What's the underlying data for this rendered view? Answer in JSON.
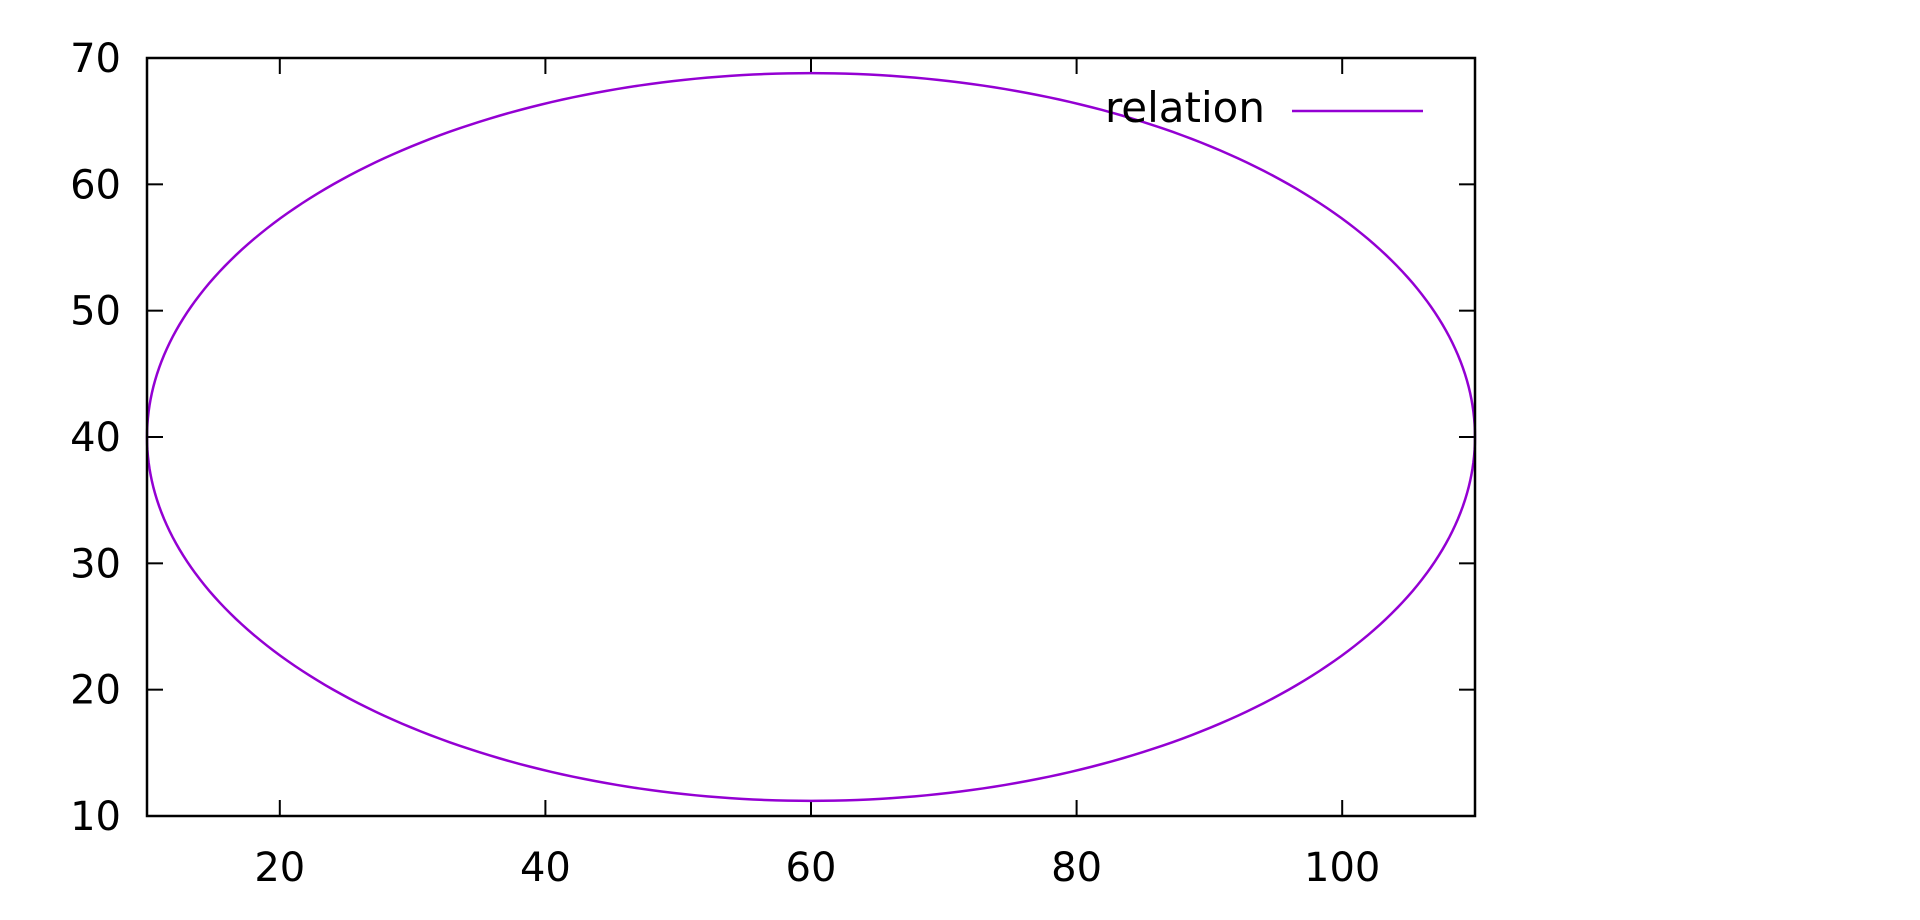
{
  "chart_data": {
    "type": "line",
    "title": "",
    "xlabel": "",
    "ylabel": "",
    "xlim": [
      10,
      110
    ],
    "ylim": [
      10,
      70
    ],
    "x_ticks": [
      20,
      40,
      60,
      80,
      100
    ],
    "y_ticks": [
      10,
      20,
      30,
      40,
      50,
      60,
      70
    ],
    "grid": false,
    "legend_position": "top-right",
    "series": [
      {
        "name": "relation",
        "color": "#9400d3",
        "shape": "ellipse",
        "center": [
          60,
          40
        ],
        "x_radius": 50,
        "y_radius": 28.8,
        "x": [
          110,
          106.19,
          95.36,
          79.13,
          60,
          40.87,
          24.64,
          13.81,
          10,
          13.81,
          24.64,
          40.87,
          60,
          79.13,
          95.36,
          106.19,
          110
        ],
        "y": [
          40,
          51.02,
          60.36,
          66.61,
          68.8,
          66.61,
          60.36,
          51.02,
          40,
          28.98,
          19.64,
          13.39,
          11.2,
          13.39,
          19.64,
          28.98,
          40
        ]
      }
    ]
  }
}
